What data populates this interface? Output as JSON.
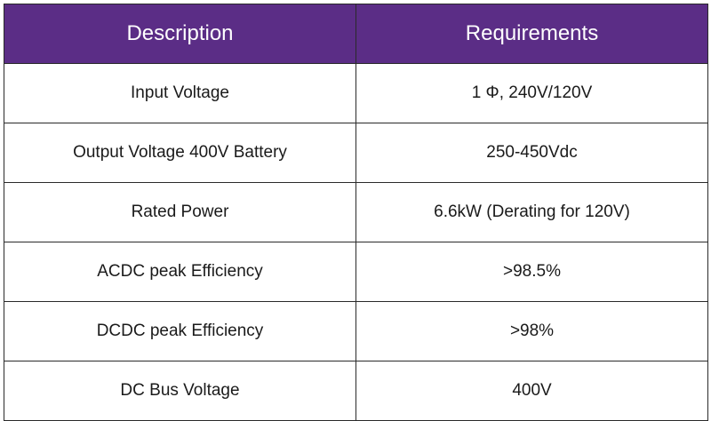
{
  "table": {
    "headers": [
      "Description",
      "Requirements"
    ],
    "rows": [
      [
        "Input Voltage",
        "1 Φ, 240V/120V"
      ],
      [
        "Output Voltage 400V Battery",
        "250-450Vdc"
      ],
      [
        "Rated Power",
        "6.6kW (Derating for 120V)"
      ],
      [
        "ACDC peak Efficiency",
        ">98.5%"
      ],
      [
        "DCDC peak Efficiency",
        ">98%"
      ],
      [
        "DC Bus Voltage",
        "400V"
      ]
    ]
  },
  "colors": {
    "header_background": "#5b2d86",
    "header_text": "#ffffff",
    "border": "#2a2a2a"
  }
}
